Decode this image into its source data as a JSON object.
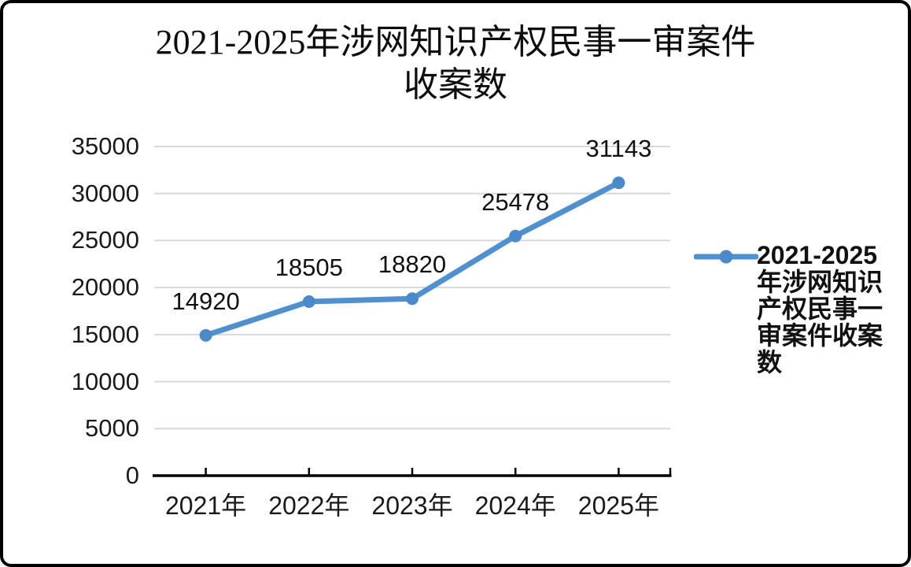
{
  "chart_data": {
    "type": "line",
    "title": "2021-2025年涉网知识产权民事一审案件收案数",
    "title_lines": [
      "2021-2025年涉网知识产权民事一审案件",
      "收案数"
    ],
    "categories": [
      "2021年",
      "2022年",
      "2023年",
      "2024年",
      "2025年"
    ],
    "series": [
      {
        "name": "2021-2025年涉网知识产权民事一审案件收案数",
        "values": [
          14920,
          18505,
          18820,
          25478,
          31143
        ],
        "color": "#5190cf"
      }
    ],
    "y_axis": {
      "min": 0,
      "max": 35000,
      "step": 5000,
      "ticks": [
        0,
        5000,
        10000,
        15000,
        20000,
        25000,
        30000,
        35000
      ]
    },
    "grid": true,
    "data_labels_shown": true,
    "legend_position": "right",
    "colors": {
      "line": "#5190cf",
      "marker": "#4c89c8",
      "gridline": "#d9d9d9",
      "axis": "#000000",
      "text": "#1a1a1a"
    }
  }
}
